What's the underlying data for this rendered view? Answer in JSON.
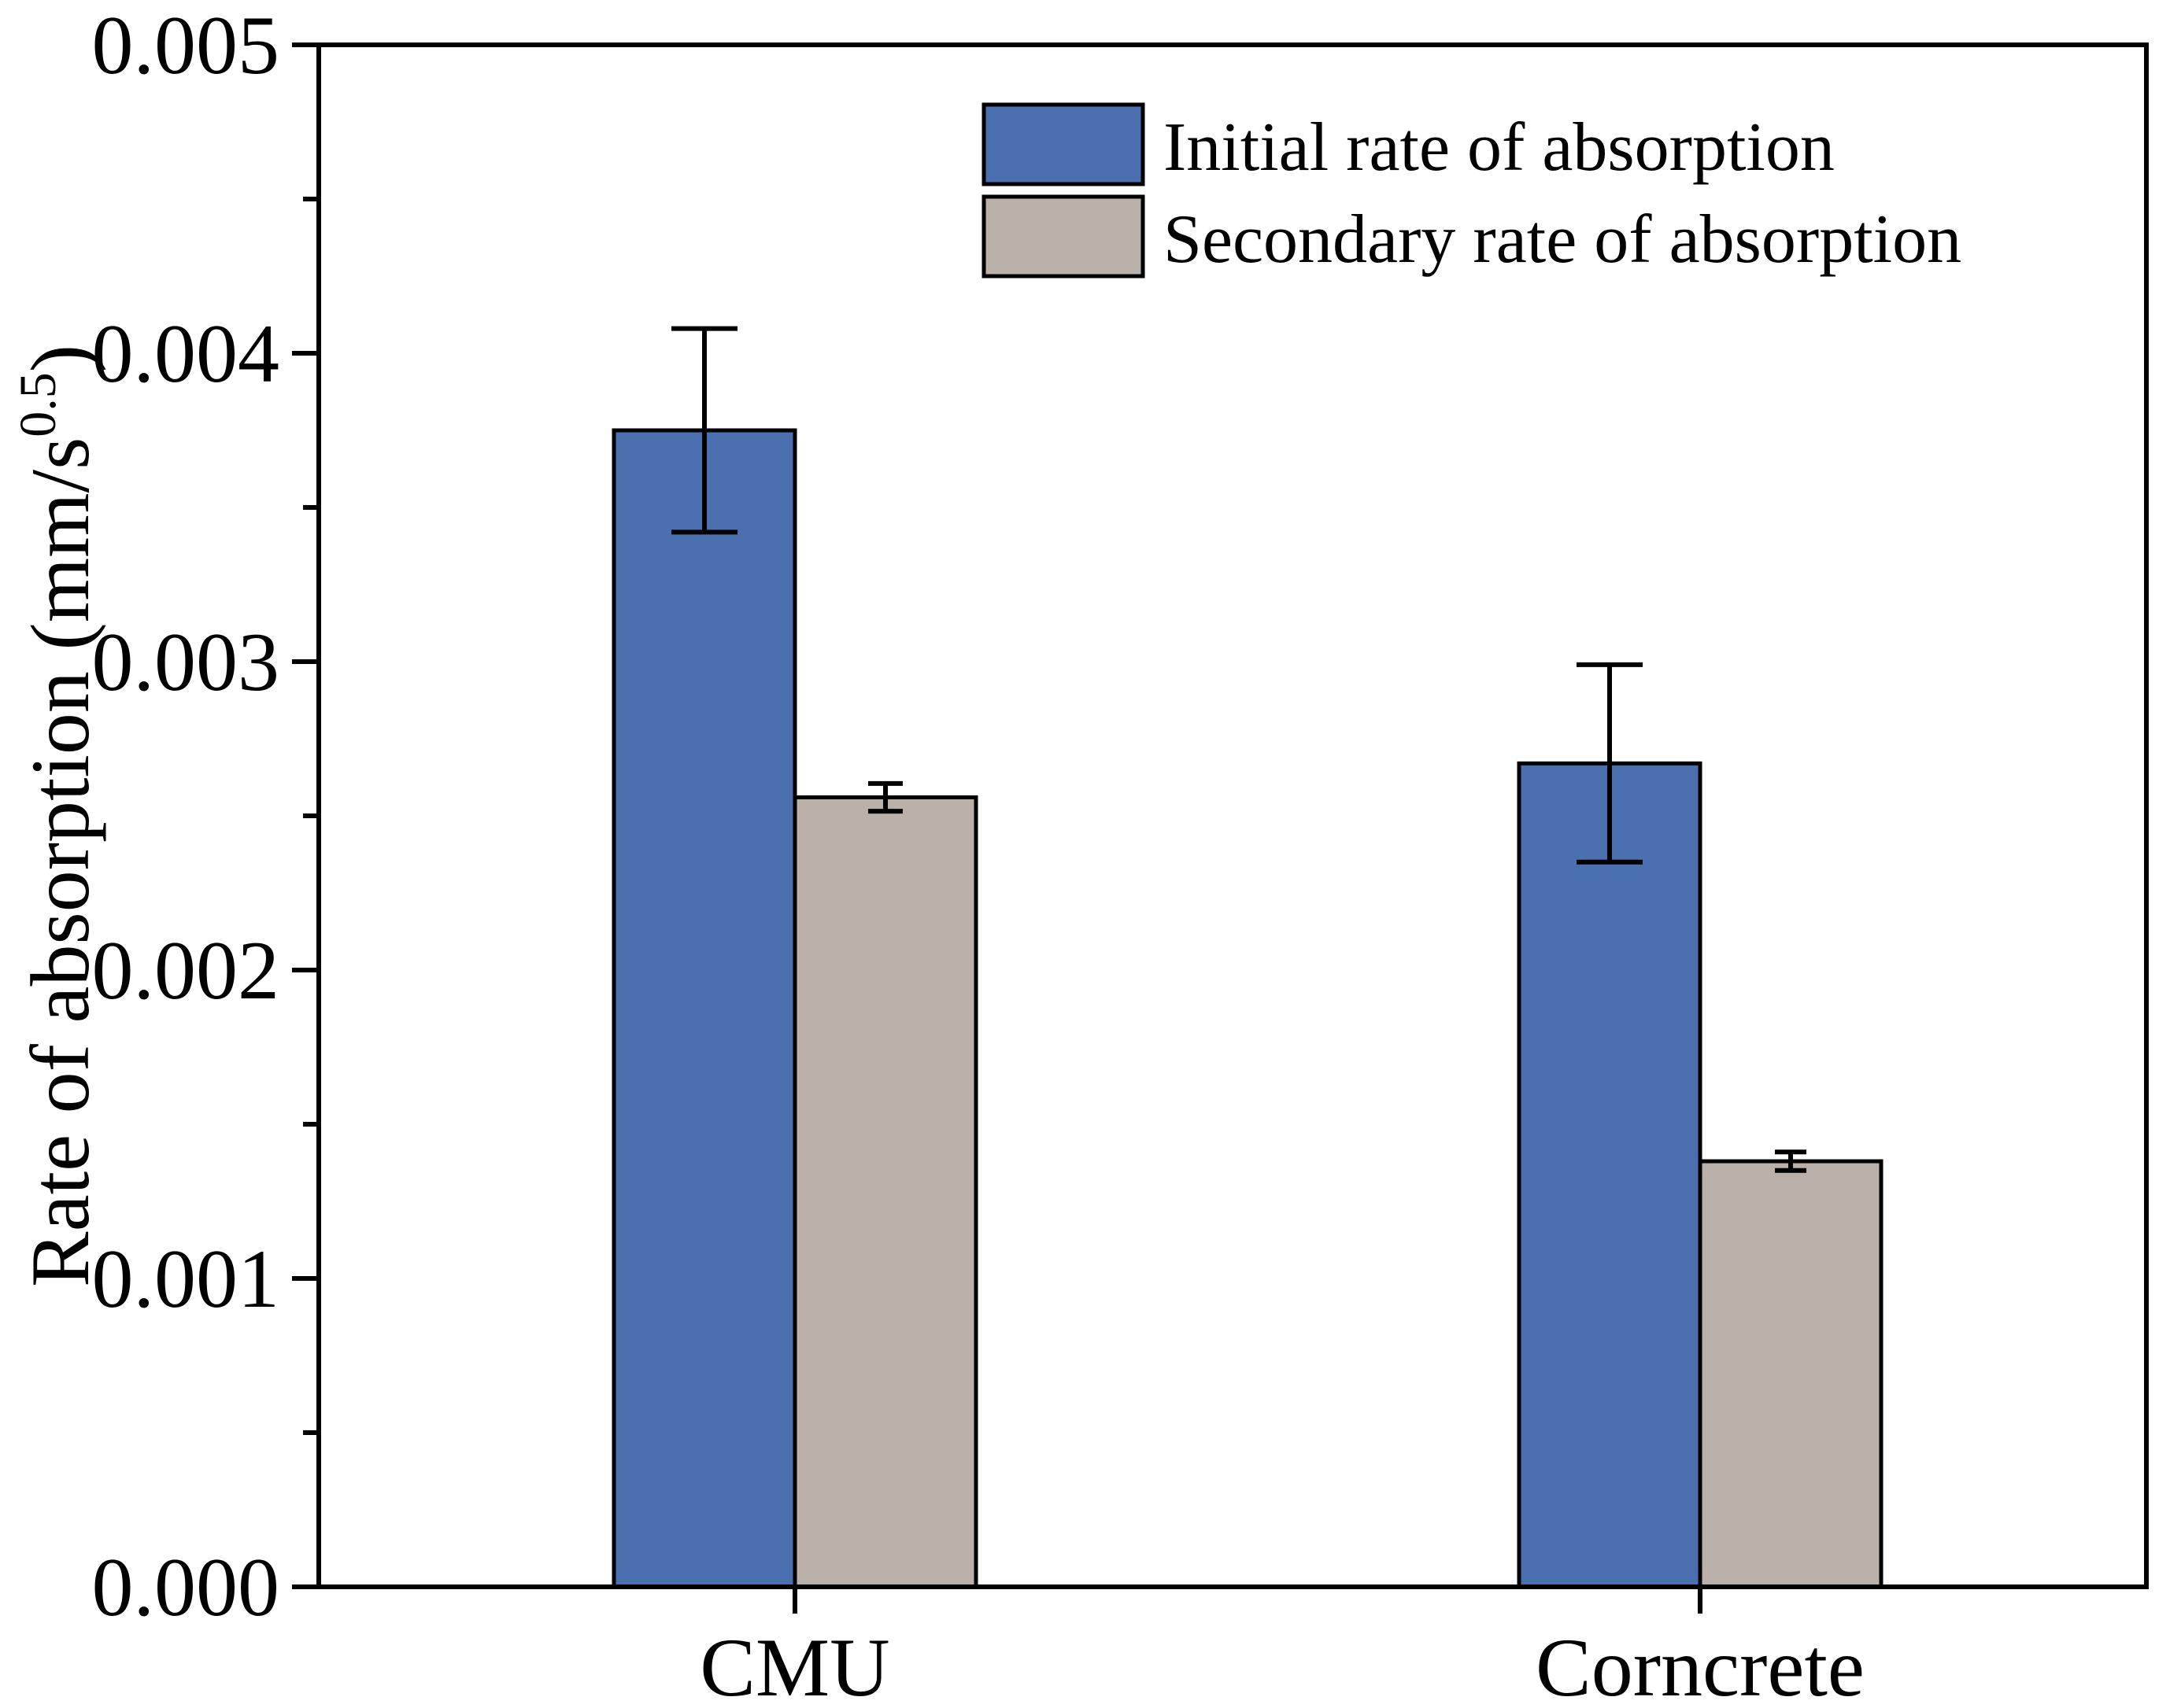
{
  "chart_data": {
    "type": "bar",
    "categories": [
      "CMU",
      "Corncrete"
    ],
    "series": [
      {
        "name": "Initial rate of absorption",
        "values": [
          0.00375,
          0.00267
        ],
        "error": [
          0.00033,
          0.00032
        ],
        "color": "#4a70b0"
      },
      {
        "name": "Secondary rate of absorption",
        "values": [
          0.00256,
          0.00138
        ],
        "error": [
          4.5e-05,
          3e-05
        ],
        "color": "#bab1ab"
      }
    ],
    "xlabel": "",
    "ylabel": "Rate of absorption (mm/s",
    "ylabel_superscript": "0.5",
    "ylabel_close": ")",
    "ylim": [
      0,
      0.005
    ],
    "yticks": [
      "0.000",
      "0.001",
      "0.002",
      "0.003",
      "0.004",
      "0.005"
    ],
    "grid": false,
    "legend_position": "top-right"
  }
}
